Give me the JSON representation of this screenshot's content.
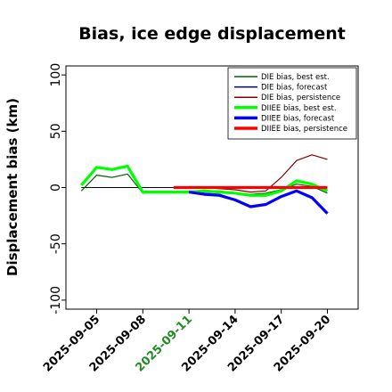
{
  "chart_data": {
    "type": "line",
    "title": "Bias, ice edge displacement",
    "xlabel": "",
    "ylabel": "Displacement bias (km)",
    "ylim": [
      -108,
      108
    ],
    "yticks": [
      100,
      50,
      0,
      -50,
      -100
    ],
    "xlim": [
      "2025-09-03",
      "2025-09-22"
    ],
    "x": [
      "2025-09-04",
      "2025-09-05",
      "2025-09-06",
      "2025-09-07",
      "2025-09-08",
      "2025-09-09",
      "2025-09-10",
      "2025-09-11",
      "2025-09-12",
      "2025-09-13",
      "2025-09-14",
      "2025-09-15",
      "2025-09-16",
      "2025-09-17",
      "2025-09-18",
      "2025-09-19",
      "2025-09-20"
    ],
    "xticks": [
      "2025-09-05",
      "2025-09-08",
      "2025-09-11",
      "2025-09-14",
      "2025-09-17",
      "2025-09-20"
    ],
    "highlight_tick": "2025-09-11",
    "highlight_color": "#228B22",
    "zero_line": true,
    "grid": false,
    "legend_position": "top-right",
    "series": [
      {
        "name": "DIE bias, best est.",
        "color": "#006400",
        "width": 1.2,
        "values": [
          -3,
          11,
          9,
          12,
          -5,
          -4,
          -4,
          -4,
          -3,
          -3,
          -5,
          -6,
          -5,
          -2,
          3,
          1,
          -5
        ]
      },
      {
        "name": "DIE bias, forecast",
        "color": "#00008B",
        "width": 1.2,
        "values": [
          null,
          null,
          null,
          null,
          null,
          null,
          null,
          -3,
          -5,
          -6,
          -11,
          -17,
          -15,
          -8,
          -3,
          -9,
          -23
        ]
      },
      {
        "name": "DIE bias, persistence",
        "color": "#800000",
        "width": 1.2,
        "values": [
          null,
          null,
          null,
          null,
          null,
          null,
          0,
          0,
          0,
          -1,
          -2,
          -4,
          -3,
          9,
          24,
          29,
          25
        ]
      },
      {
        "name": "DIIEE bias, best est.",
        "color": "#00FF00",
        "width": 3.2,
        "values": [
          2,
          18,
          16,
          19,
          -4,
          -4,
          -4,
          -4,
          -3,
          -4,
          -5,
          -7,
          -7,
          -3,
          6,
          3,
          -3
        ]
      },
      {
        "name": "DIIEE bias, forecast",
        "color": "#0000FF",
        "width": 3.2,
        "values": [
          null,
          null,
          null,
          null,
          null,
          null,
          null,
          -4,
          -6,
          -7,
          -11,
          -17,
          -15,
          -8,
          -3,
          -9,
          -23
        ]
      },
      {
        "name": "DIIEE bias, persistence",
        "color": "#FF0000",
        "width": 3.2,
        "values": [
          null,
          null,
          null,
          null,
          null,
          null,
          0,
          0,
          0,
          0,
          0,
          0,
          0,
          0,
          0,
          0,
          0
        ]
      }
    ]
  }
}
